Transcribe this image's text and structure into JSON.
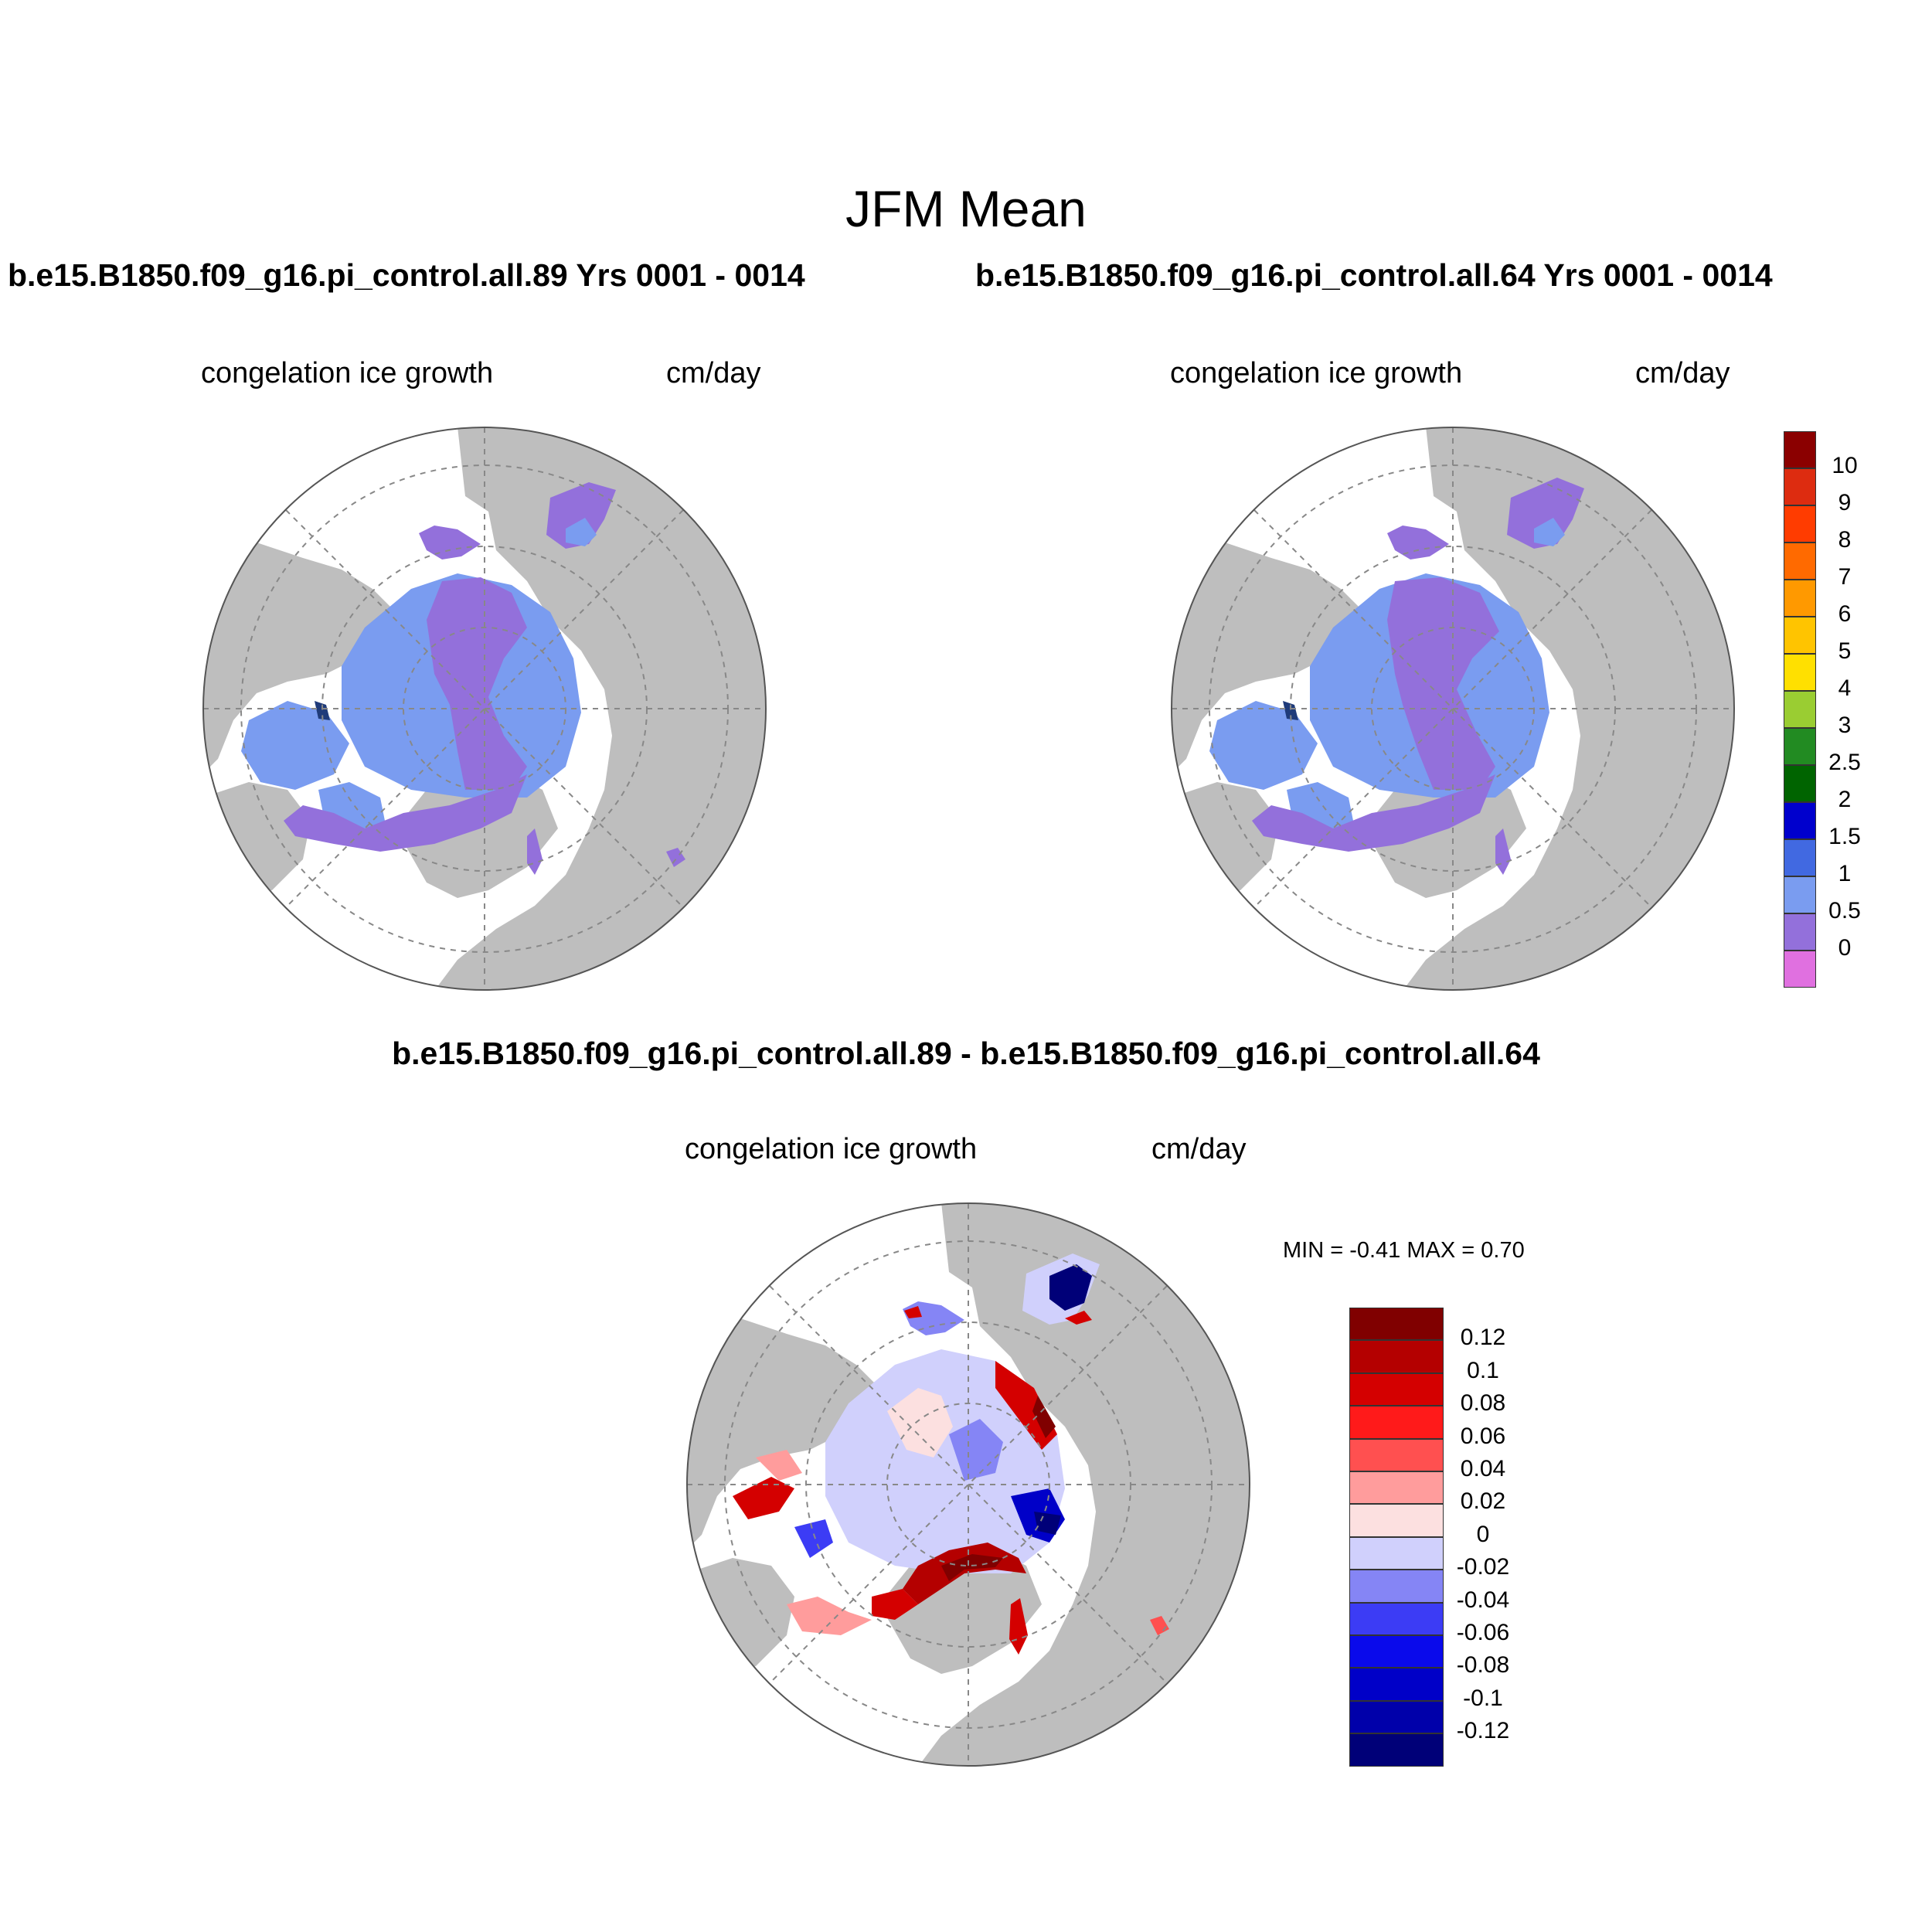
{
  "figure": {
    "title": "JFM Mean",
    "panels": [
      {
        "run_title": "b.e15.B1850.f09_g16.pi_control.all.89  Yrs 0001 - 0014",
        "variable": "congelation ice growth",
        "units": "cm/day"
      },
      {
        "run_title": "b.e15.B1850.f09_g16.pi_control.all.64  Yrs 0001 - 0014",
        "variable": "congelation ice growth",
        "units": "cm/day"
      }
    ],
    "difference": {
      "title": "b.e15.B1850.f09_g16.pi_control.all.89 - b.e15.B1850.f09_g16.pi_control.all.64",
      "variable": "congelation ice growth",
      "units": "cm/day",
      "minmax": "MIN =  -0.41 MAX =   0.70"
    }
  },
  "chart_data": [
    {
      "type": "heatmap",
      "projection": "north polar stereographic",
      "title": "b.e15.B1850.f09_g16.pi_control.all.89  Yrs 0001 - 0014",
      "field": "congelation ice growth",
      "units": "cm/day",
      "colorbar": {
        "labels": [
          "0",
          "0.5",
          "1",
          "1.5",
          "2",
          "2.5",
          "3",
          "4",
          "5",
          "6",
          "7",
          "8",
          "9",
          "10"
        ],
        "colors": [
          "#e070e0",
          "#9370db",
          "#7a9cf0",
          "#4169e1",
          "#0000cd",
          "#006400",
          "#228b22",
          "#9acd32",
          "#ffe000",
          "#ffc400",
          "#ff9900",
          "#ff6a00",
          "#ff3c00",
          "#dd2c10",
          "#8b0000"
        ]
      }
    },
    {
      "type": "heatmap",
      "projection": "north polar stereographic",
      "title": "b.e15.B1850.f09_g16.pi_control.all.64  Yrs 0001 - 0014",
      "field": "congelation ice growth",
      "units": "cm/day"
    },
    {
      "type": "heatmap",
      "projection": "north polar stereographic",
      "title": "b.e15.B1850.f09_g16.pi_control.all.89 - b.e15.B1850.f09_g16.pi_control.all.64",
      "field": "congelation ice growth",
      "units": "cm/day",
      "min": -0.41,
      "max": 0.7,
      "colorbar": {
        "labels": [
          "0.12",
          "0.1",
          "0.08",
          "0.06",
          "0.04",
          "0.02",
          "0",
          "-0.02",
          "-0.04",
          "-0.06",
          "-0.08",
          "-0.1",
          "-0.12"
        ],
        "colors": [
          "#800000",
          "#b40000",
          "#d40000",
          "#ff1a1a",
          "#ff5050",
          "#ff9c9c",
          "#fce0e0",
          "#d0d0fc",
          "#8585f5",
          "#3c3cf5",
          "#0a0aeb",
          "#0000c8",
          "#0000aa",
          "#000078"
        ]
      }
    }
  ]
}
